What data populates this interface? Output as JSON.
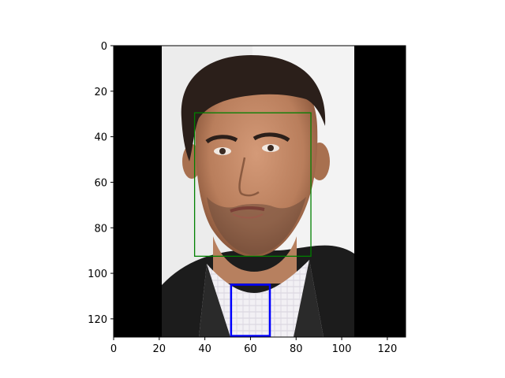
{
  "figure": {
    "x_ticks": [
      "0",
      "20",
      "40",
      "60",
      "80",
      "100",
      "120"
    ],
    "y_ticks": [
      "0",
      "20",
      "40",
      "60",
      "80",
      "100",
      "120"
    ],
    "x_range": [
      0,
      128
    ],
    "y_range": [
      0,
      128
    ],
    "y_axis_inverted": true,
    "image_extent_x": [
      21,
      106
    ],
    "background_fill_color": "#000000",
    "boxes": [
      {
        "name": "face-box",
        "color": "#008000",
        "x0": 35.5,
        "y0": 29.5,
        "x1": 86.5,
        "y1": 92.5
      },
      {
        "name": "neck-box",
        "color": "#0000ff",
        "x0": 51.5,
        "y0": 105.0,
        "x1": 68.5,
        "y1": 127.5
      }
    ]
  }
}
